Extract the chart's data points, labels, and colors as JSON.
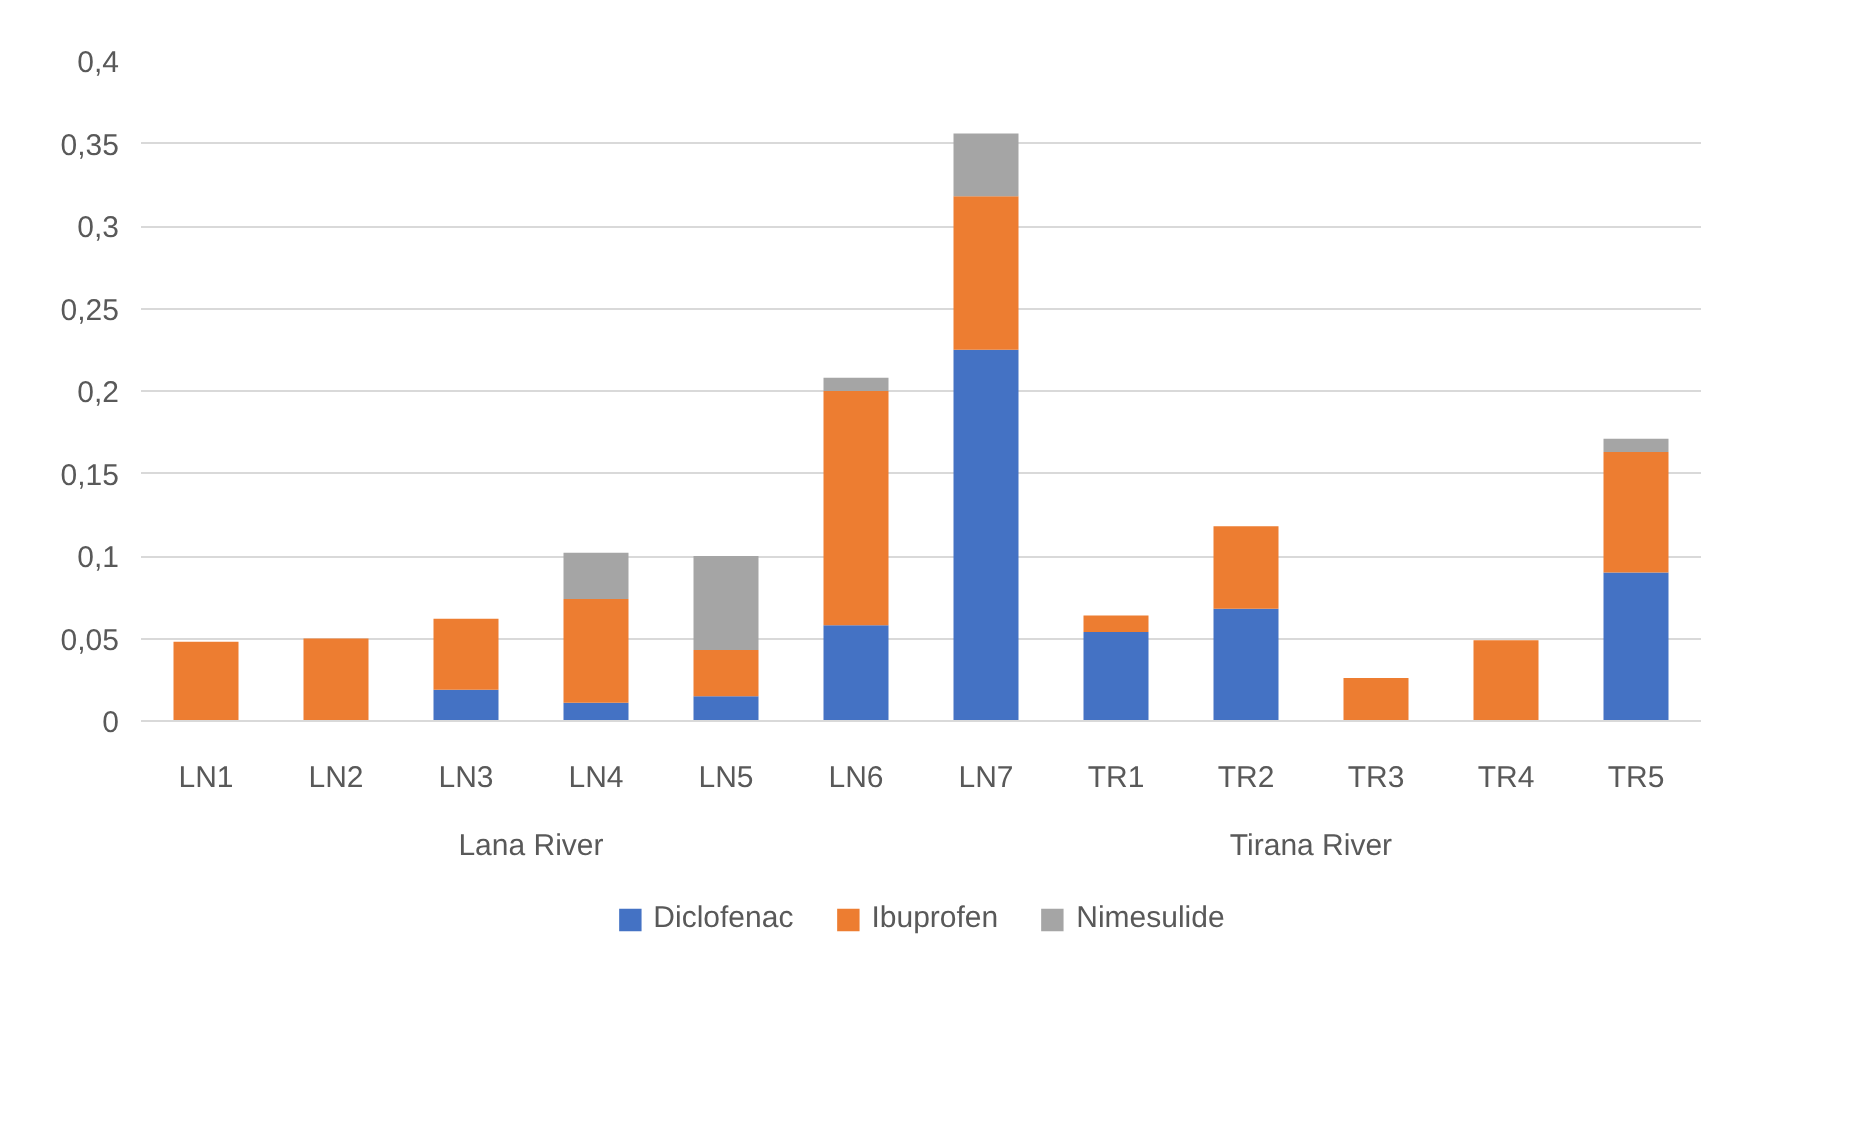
{
  "chart_data": {
    "type": "bar",
    "stacked": true,
    "categories": [
      "LN1",
      "LN2",
      "LN3",
      "LN4",
      "LN5",
      "LN6",
      "LN7",
      "TR1",
      "TR2",
      "TR3",
      "TR4",
      "TR5"
    ],
    "series": [
      {
        "name": "Diclofenac",
        "color": "#4472c4",
        "values": [
          0,
          0,
          0.019,
          0.011,
          0.015,
          0.058,
          0.225,
          0.054,
          0.068,
          0,
          0,
          0.09
        ]
      },
      {
        "name": "Ibuprofen",
        "color": "#ed7d31",
        "values": [
          0.048,
          0.05,
          0.043,
          0.063,
          0.028,
          0.142,
          0.093,
          0.01,
          0.05,
          0.026,
          0.049,
          0.073
        ]
      },
      {
        "name": "Nimesulide",
        "color": "#a5a5a5",
        "values": [
          0,
          0,
          0,
          0.028,
          0.057,
          0.008,
          0.038,
          0,
          0,
          0,
          0,
          0.008
        ]
      }
    ],
    "ylim": [
      0,
      0.4
    ],
    "yticks": [
      0,
      {
        "value": 0.05,
        "label": "0,05"
      },
      {
        "value": 0.1,
        "label": "0,1"
      },
      {
        "value": 0.15,
        "label": "0,15"
      },
      {
        "value": 0.2,
        "label": "0,2"
      },
      {
        "value": 0.25,
        "label": "0,25"
      },
      {
        "value": 0.3,
        "label": "0,3"
      },
      {
        "value": 0.35,
        "label": "0,35"
      },
      {
        "value": 0.4,
        "label": "0,4"
      }
    ],
    "annotations": [
      "Lana River",
      "Tirana River"
    ],
    "grid": "y",
    "legend": "bottom"
  }
}
